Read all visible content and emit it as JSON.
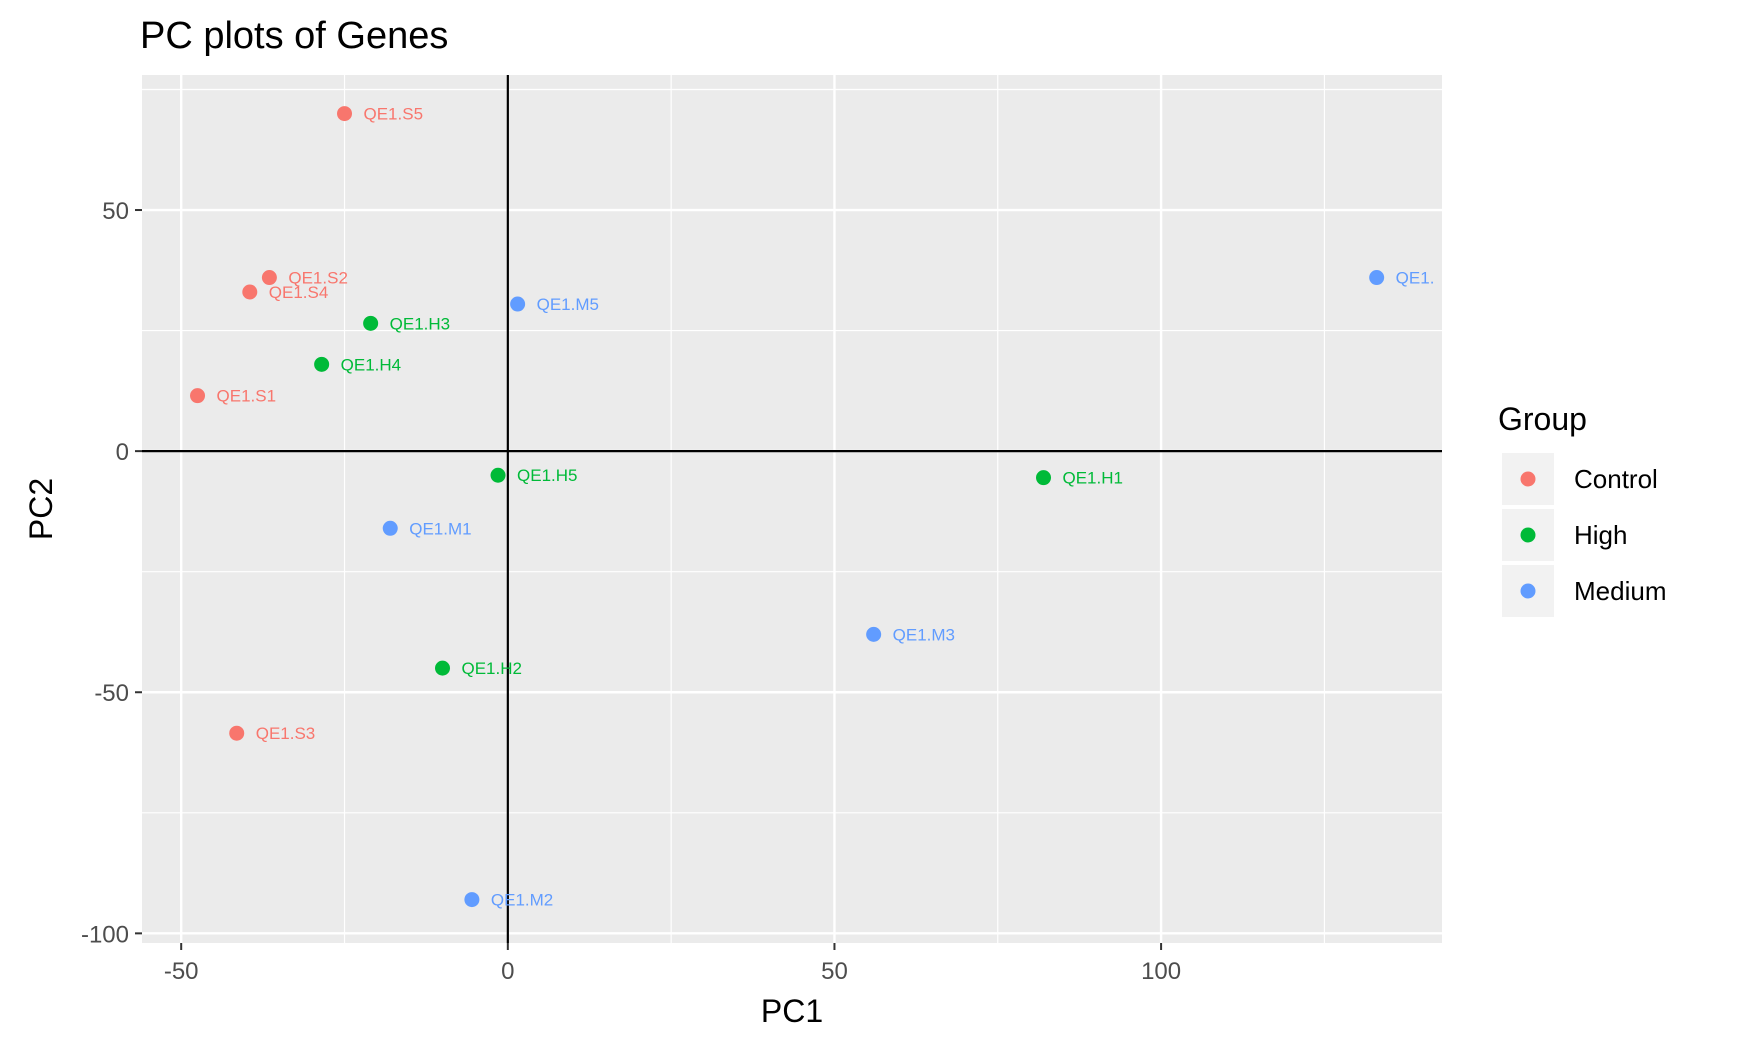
{
  "chart_data": {
    "type": "scatter",
    "title": "PC plots of Genes",
    "xlabel": "PC1",
    "ylabel": "PC2",
    "xlim": [
      -56,
      143
    ],
    "ylim": [
      -102,
      78
    ],
    "x_ticks": [
      -50,
      0,
      50,
      100
    ],
    "x_tick_labels": [
      "-50",
      "0",
      "50",
      "100"
    ],
    "y_ticks": [
      -100,
      -50,
      0,
      50
    ],
    "y_tick_labels": [
      "-100",
      "-50",
      "0",
      "50"
    ],
    "grid": true,
    "reference_lines": {
      "x": 0,
      "y": 0
    },
    "legend": {
      "title": "Group",
      "placement": "right",
      "entries": [
        {
          "name": "Control",
          "color": "#F8766D"
        },
        {
          "name": "High",
          "color": "#00BA38"
        },
        {
          "name": "Medium",
          "color": "#619CFF"
        }
      ]
    },
    "points": [
      {
        "label": "QE1.S5",
        "group": "Control",
        "x": -25,
        "y": 70
      },
      {
        "label": "QE1.S2",
        "group": "Control",
        "x": -36.5,
        "y": 36
      },
      {
        "label": "QE1.S4",
        "group": "Control",
        "x": -39.5,
        "y": 33
      },
      {
        "label": "QE1.S1",
        "group": "Control",
        "x": -47.5,
        "y": 11.5
      },
      {
        "label": "QE1.S3",
        "group": "Control",
        "x": -41.5,
        "y": -58.5
      },
      {
        "label": "QE1.H3",
        "group": "High",
        "x": -21,
        "y": 26.5
      },
      {
        "label": "QE1.H4",
        "group": "High",
        "x": -28.5,
        "y": 18
      },
      {
        "label": "QE1.H5",
        "group": "High",
        "x": -1.5,
        "y": -5
      },
      {
        "label": "QE1.H1",
        "group": "High",
        "x": 82,
        "y": -5.5
      },
      {
        "label": "QE1.H2",
        "group": "High",
        "x": -10,
        "y": -45
      },
      {
        "label": "QE1.M5",
        "group": "Medium",
        "x": 1.5,
        "y": 30.5
      },
      {
        "label": "QE1.M1",
        "group": "Medium",
        "x": -18,
        "y": -16
      },
      {
        "label": "QE1.M3",
        "group": "Medium",
        "x": 56,
        "y": -38
      },
      {
        "label": "QE1.M2",
        "group": "Medium",
        "x": -5.5,
        "y": -93
      },
      {
        "label": "QE1.",
        "group": "Medium",
        "x": 133,
        "y": 36
      }
    ]
  }
}
